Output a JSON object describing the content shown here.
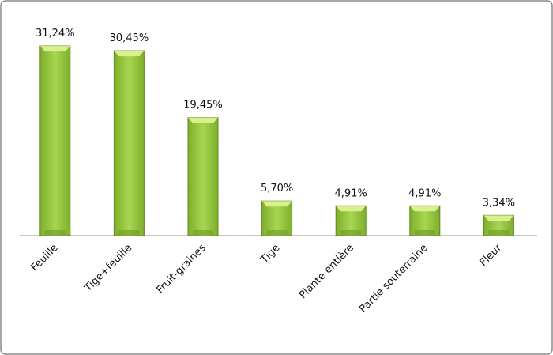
{
  "chart_data": {
    "type": "bar",
    "categories": [
      "Feuille",
      "Tige+feuille",
      "Fruit-graines",
      "Tige",
      "Plante entière",
      "Partie souterraine",
      "Fleur"
    ],
    "values": [
      31.24,
      30.45,
      19.45,
      5.7,
      4.91,
      4.91,
      3.34
    ],
    "value_labels": [
      "31,24%",
      "30,45%",
      "19,45%",
      "5,70%",
      "4,91%",
      "4,91%",
      "3,34%"
    ],
    "color": "#9acd3c"
  }
}
